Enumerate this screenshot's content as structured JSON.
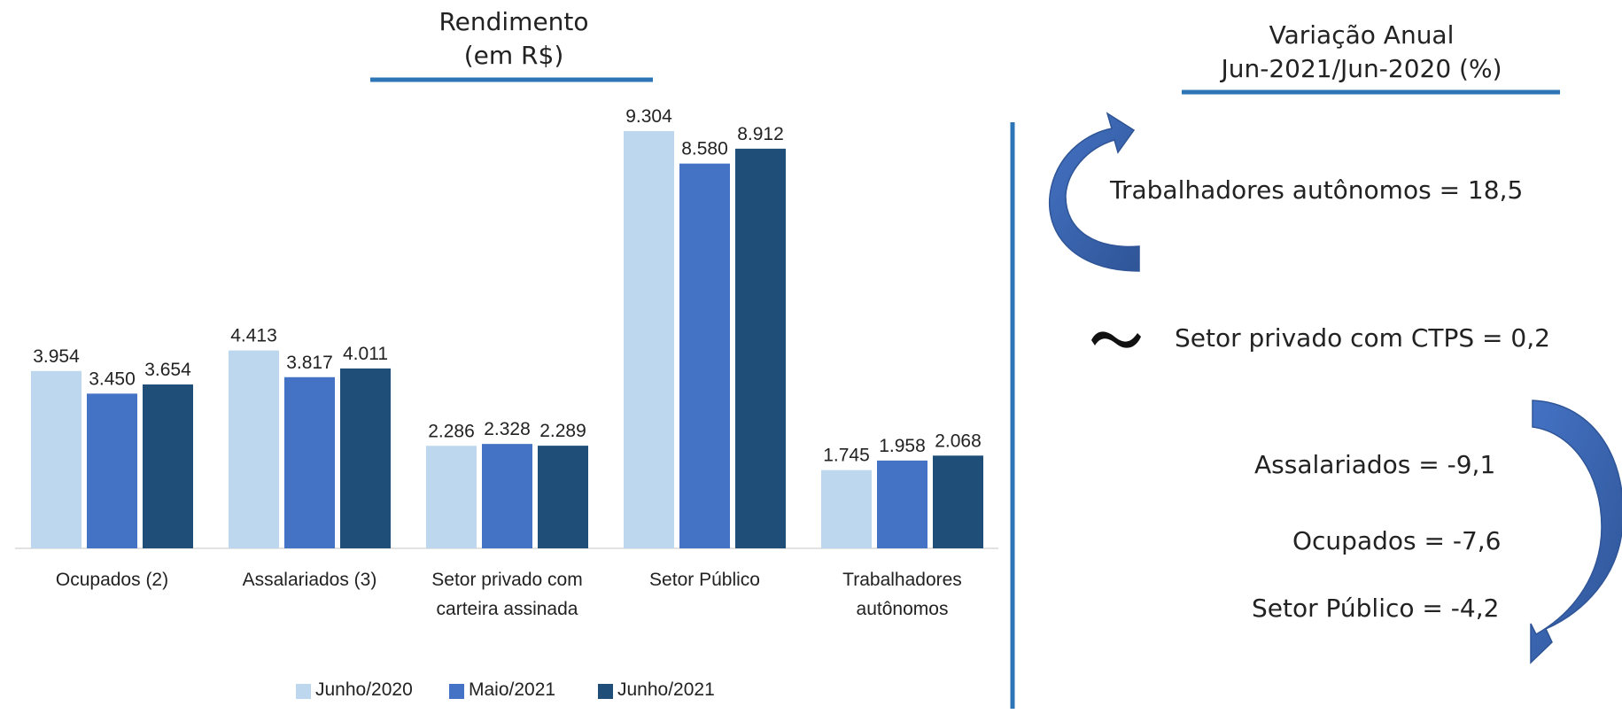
{
  "chart_data": {
    "type": "bar",
    "title": "Rendimento",
    "subtitle": "(em R$)",
    "categories": [
      "Ocupados (2)",
      "Assalariados (3)",
      "Setor privado com carteira assinada",
      "Setor Público",
      "Trabalhadores autônomos"
    ],
    "series": [
      {
        "name": "Junho/2020",
        "color": "#bdd7ee",
        "values": [
          3954,
          4413,
          2286,
          9304,
          1745
        ],
        "value_labels": [
          "3.954",
          "4.413",
          "2.286",
          "9.304",
          "1.745"
        ]
      },
      {
        "name": "Maio/2021",
        "color": "#4472c4",
        "values": [
          3450,
          3817,
          2328,
          8580,
          1958
        ],
        "value_labels": [
          "3.450",
          "3.817",
          "2.328",
          "8.580",
          "1.958"
        ]
      },
      {
        "name": "Junho/2021",
        "color": "#1f4e79",
        "values": [
          3654,
          4011,
          2289,
          8912,
          2068
        ],
        "value_labels": [
          "3.654",
          "4.011",
          "2.289",
          "8.912",
          "2.068"
        ]
      }
    ],
    "legend": "bottom"
  },
  "annual_variation": {
    "title": "Variação Anual",
    "subtitle": "Jun-2021/Jun-2020 (%)",
    "items": [
      "Trabalhadores autônomos = 18,5",
      "Setor privado com CTPS = 0,2",
      "Assalariados = -9,1",
      "Ocupados = -7,6",
      "Setor Público = -4,2"
    ]
  }
}
